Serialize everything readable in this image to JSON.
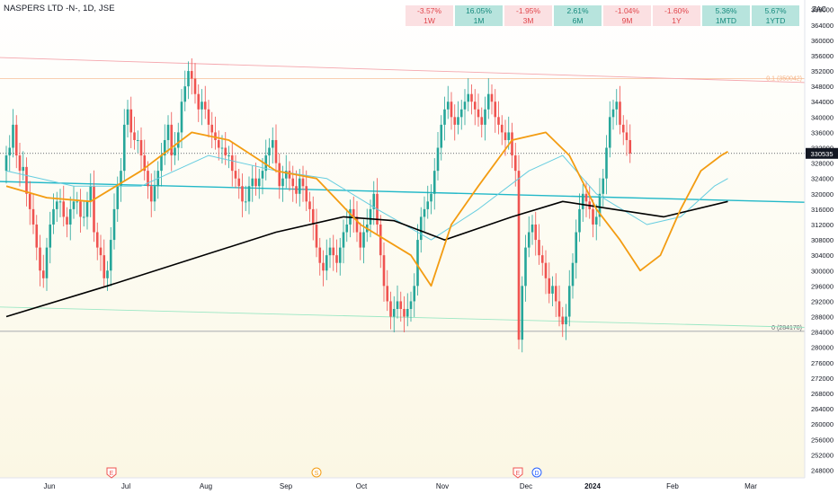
{
  "header": {
    "title": "NASPERS LTD -N-, 1D, JSE",
    "currency": "ZAC"
  },
  "performance": [
    {
      "value": "-3.57%",
      "period": "1W",
      "dir": "neg"
    },
    {
      "value": "16.05%",
      "period": "1M",
      "dir": "pos"
    },
    {
      "value": "-1.95%",
      "period": "3M",
      "dir": "neg"
    },
    {
      "value": "2.61%",
      "period": "6M",
      "dir": "pos"
    },
    {
      "value": "-1.04%",
      "period": "9M",
      "dir": "neg"
    },
    {
      "value": "-1.60%",
      "period": "1Y",
      "dir": "neg"
    },
    {
      "value": "5.36%",
      "period": "1MTD",
      "dir": "pos"
    },
    {
      "value": "5.67%",
      "period": "1YTD",
      "dir": "pos"
    }
  ],
  "colors": {
    "up": "#26a69a",
    "down": "#ef5350",
    "ma_fast": "#f39c12",
    "ma_mid": "#66cde0",
    "ma_slow": "#000000",
    "trend": "#22b8c8",
    "fib_top": "#f5b183",
    "fib_bottom": "#8a8f99"
  },
  "chart_data": {
    "type": "candlestick",
    "title": "NASPERS LTD -N-, 1D, JSE",
    "x_ticks": [
      "Jun",
      "Jul",
      "Aug",
      "Sep",
      "Oct",
      "Nov",
      "Dec",
      "2024",
      "Feb",
      "Mar"
    ],
    "y_ticks": [
      248000,
      252000,
      256000,
      260000,
      264000,
      268000,
      272000,
      276000,
      280000,
      284000,
      288000,
      292000,
      296000,
      300000,
      304000,
      308000,
      312000,
      316000,
      320000,
      324000,
      328000,
      332000,
      336000,
      340000,
      344000,
      348000,
      352000,
      356000,
      360000,
      364000,
      368000
    ],
    "ylim": [
      246000,
      370500
    ],
    "last_price": "330535",
    "fib_levels": [
      {
        "label": "0.1 (350042)",
        "value": 350042
      },
      {
        "label": "0 (284170)",
        "value": 284170
      }
    ],
    "events": [
      {
        "label": "E",
        "month": "Jul",
        "color": "#ef5350"
      },
      {
        "label": "S",
        "month": "Sep",
        "color": "#f39c12"
      },
      {
        "label": "E",
        "month": "Dec",
        "color": "#ef5350"
      },
      {
        "label": "D",
        "month": "Dec",
        "color": "#2962ff"
      }
    ],
    "closes": [
      330000,
      332000,
      338000,
      330000,
      326000,
      327000,
      320000,
      316000,
      312000,
      306000,
      300000,
      298000,
      306000,
      312000,
      316000,
      318000,
      318000,
      314000,
      312000,
      316000,
      318000,
      318000,
      314000,
      314000,
      318000,
      322000,
      310000,
      306000,
      304000,
      298000,
      300000,
      308000,
      316000,
      322000,
      326000,
      338000,
      342000,
      336000,
      334000,
      334000,
      330000,
      326000,
      322000,
      318000,
      322000,
      326000,
      330000,
      334000,
      338000,
      330000,
      332000,
      336000,
      344000,
      348000,
      352000,
      350000,
      346000,
      342000,
      344000,
      342000,
      338000,
      336000,
      334000,
      332000,
      332000,
      330000,
      330000,
      326000,
      324000,
      322000,
      318000,
      318000,
      322000,
      324000,
      322000,
      324000,
      326000,
      330000,
      332000,
      334000,
      328000,
      322000,
      324000,
      326000,
      324000,
      322000,
      320000,
      324000,
      322000,
      318000,
      316000,
      312000,
      306000,
      302000,
      300000,
      304000,
      306000,
      304000,
      302000,
      306000,
      310000,
      312000,
      316000,
      314000,
      310000,
      306000,
      310000,
      312000,
      316000,
      320000,
      312000,
      304000,
      296000,
      292000,
      288000,
      290000,
      292000,
      290000,
      288000,
      290000,
      292000,
      296000,
      308000,
      314000,
      316000,
      318000,
      320000,
      326000,
      332000,
      338000,
      342000,
      344000,
      340000,
      338000,
      340000,
      342000,
      344000,
      346000,
      344000,
      342000,
      340000,
      338000,
      342000,
      346000,
      344000,
      340000,
      338000,
      336000,
      334000,
      336000,
      330000,
      326000,
      282000,
      296000,
      306000,
      310000,
      312000,
      308000,
      304000,
      302000,
      298000,
      294000,
      296000,
      292000,
      288000,
      286000,
      288000,
      296000,
      302000,
      310000,
      316000,
      320000,
      318000,
      316000,
      312000,
      314000,
      320000,
      324000,
      332000,
      340000,
      342000,
      344000,
      338000,
      336000,
      334000,
      330535
    ],
    "ma_fast": [
      [
        0,
        322000
      ],
      [
        12,
        319000
      ],
      [
        25,
        318000
      ],
      [
        40,
        326000
      ],
      [
        55,
        336000
      ],
      [
        66,
        334000
      ],
      [
        80,
        326000
      ],
      [
        92,
        324000
      ],
      [
        105,
        312000
      ],
      [
        120,
        304000
      ],
      [
        126,
        296000
      ],
      [
        132,
        312000
      ],
      [
        140,
        322000
      ],
      [
        150,
        334000
      ],
      [
        160,
        336000
      ],
      [
        167,
        330000
      ],
      [
        175,
        316000
      ],
      [
        182,
        308000
      ],
      [
        188,
        300000
      ],
      [
        194,
        304000
      ],
      [
        200,
        316000
      ],
      [
        206,
        326000
      ],
      [
        212,
        330000
      ],
      [
        214,
        331000
      ]
    ],
    "ma_mid": [
      [
        0,
        326000
      ],
      [
        20,
        322000
      ],
      [
        40,
        322000
      ],
      [
        60,
        330000
      ],
      [
        80,
        326000
      ],
      [
        95,
        324000
      ],
      [
        110,
        316000
      ],
      [
        126,
        308000
      ],
      [
        140,
        316000
      ],
      [
        155,
        326000
      ],
      [
        165,
        330000
      ],
      [
        175,
        320000
      ],
      [
        190,
        312000
      ],
      [
        200,
        314000
      ],
      [
        210,
        322000
      ],
      [
        214,
        324000
      ]
    ],
    "ma_slow": [
      [
        0,
        288000
      ],
      [
        30,
        296000
      ],
      [
        55,
        303000
      ],
      [
        80,
        310000
      ],
      [
        100,
        314000
      ],
      [
        115,
        313000
      ],
      [
        130,
        308000
      ],
      [
        150,
        314000
      ],
      [
        165,
        318000
      ],
      [
        180,
        316000
      ],
      [
        195,
        314000
      ],
      [
        214,
        318000
      ]
    ]
  }
}
